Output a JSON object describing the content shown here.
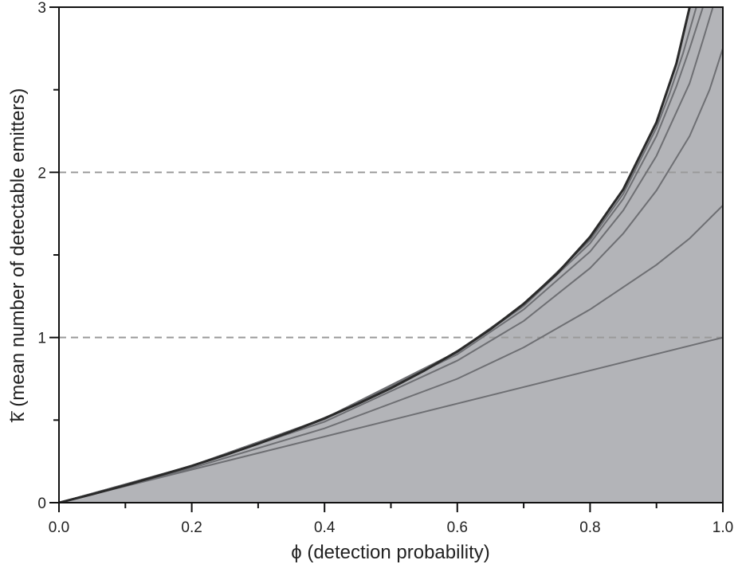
{
  "chart_data": {
    "type": "line",
    "title": "",
    "xlabel": "ϕ (detection probability)",
    "ylabel": "k̅ (mean number of detectable emitters)",
    "xlim": [
      0.0,
      1.0
    ],
    "ylim": [
      0,
      3
    ],
    "x_ticks": [
      "0.0",
      "0.2",
      "0.4",
      "0.6",
      "0.8",
      "1.0"
    ],
    "y_ticks": [
      "0",
      "1",
      "2",
      "3"
    ],
    "grid": false,
    "reference_lines": [
      {
        "axis": "y",
        "value": 1,
        "style": "dashed"
      },
      {
        "axis": "y",
        "value": 2,
        "style": "dashed"
      }
    ],
    "filled_region": {
      "description_color": "#b3b4b8",
      "bounded_by": "envelope"
    },
    "envelope": {
      "x": [
        0.0,
        0.05,
        0.1,
        0.15,
        0.2,
        0.25,
        0.3,
        0.35,
        0.4,
        0.45,
        0.5,
        0.55,
        0.6,
        0.65,
        0.7,
        0.75,
        0.8,
        0.85,
        0.9,
        0.93,
        0.95
      ],
      "values": [
        0.0,
        0.051,
        0.105,
        0.163,
        0.223,
        0.288,
        0.357,
        0.431,
        0.511,
        0.598,
        0.693,
        0.799,
        0.916,
        1.05,
        1.204,
        1.386,
        1.609,
        1.897,
        2.303,
        2.659,
        3.0
      ]
    },
    "series": [
      {
        "x": [
          0.0,
          1.0
        ],
        "values": [
          0.0,
          1.0
        ]
      },
      {
        "x": [
          0.0,
          0.2,
          0.4,
          0.6,
          0.7,
          0.8,
          0.9,
          0.95,
          1.0
        ],
        "values": [
          0.0,
          0.21,
          0.45,
          0.75,
          0.94,
          1.17,
          1.44,
          1.6,
          1.8
        ]
      },
      {
        "x": [
          0.0,
          0.2,
          0.4,
          0.6,
          0.7,
          0.8,
          0.85,
          0.9,
          0.95,
          0.98,
          1.0
        ],
        "values": [
          0.0,
          0.22,
          0.49,
          0.86,
          1.1,
          1.42,
          1.63,
          1.89,
          2.22,
          2.5,
          2.75
        ]
      },
      {
        "x": [
          0.0,
          0.2,
          0.4,
          0.6,
          0.7,
          0.8,
          0.85,
          0.9,
          0.95,
          0.97,
          0.985
        ],
        "values": [
          0.0,
          0.222,
          0.505,
          0.898,
          1.17,
          1.52,
          1.77,
          2.1,
          2.54,
          2.8,
          3.0
        ]
      },
      {
        "x": [
          0.0,
          0.2,
          0.4,
          0.6,
          0.7,
          0.8,
          0.85,
          0.9,
          0.93,
          0.95,
          0.97
        ],
        "values": [
          0.0,
          0.223,
          0.509,
          0.91,
          1.19,
          1.57,
          1.84,
          2.22,
          2.52,
          2.75,
          3.0
        ]
      },
      {
        "x": [
          0.0,
          0.2,
          0.4,
          0.6,
          0.7,
          0.8,
          0.85,
          0.9,
          0.92,
          0.94,
          0.96
        ],
        "values": [
          0.0,
          0.223,
          0.51,
          0.914,
          1.2,
          1.59,
          1.87,
          2.27,
          2.48,
          2.72,
          3.0
        ]
      }
    ],
    "colors": {
      "fill": "#b3b4b8",
      "inner_lines": "#6e6f73",
      "envelope_line": "#2a2a2a",
      "dashed_lines": "#9a9a9a",
      "axes": "#111111"
    }
  }
}
